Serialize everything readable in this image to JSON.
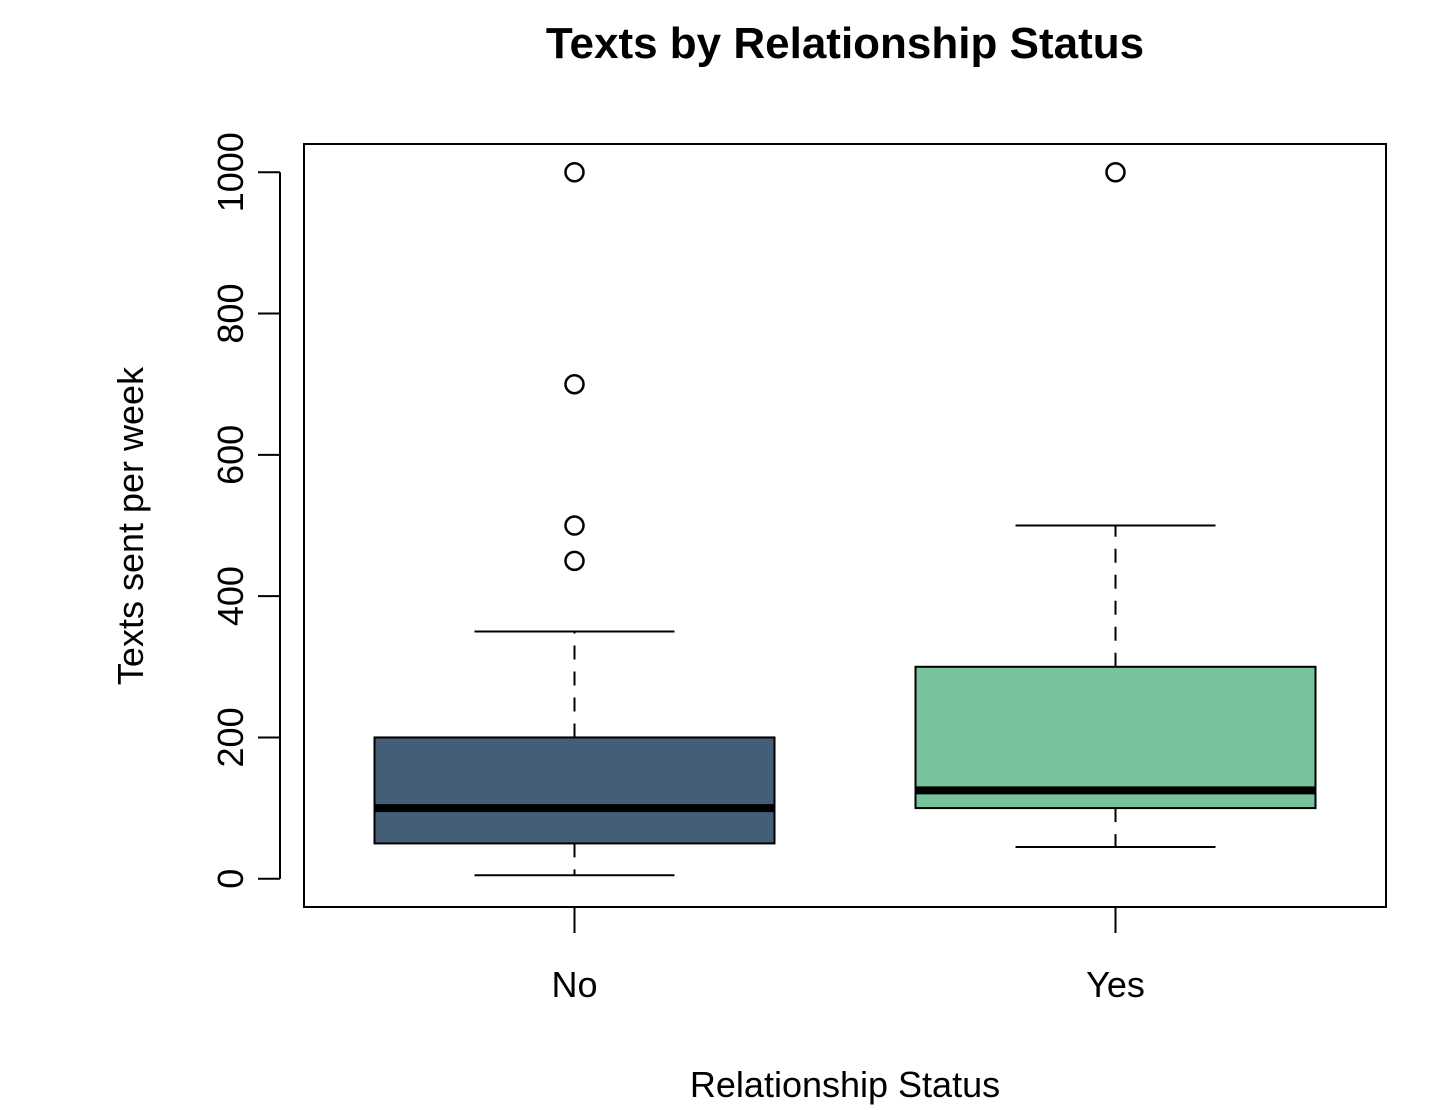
{
  "chart_data": {
    "type": "boxplot",
    "title": "Texts by Relationship Status",
    "xlabel": "Relationship Status",
    "ylabel": "Texts sent per week",
    "ylim": [
      -40,
      1040
    ],
    "yticks": [
      0,
      200,
      400,
      600,
      800,
      1000
    ],
    "yticks_labels": [
      "0",
      "200",
      "400",
      "600",
      "800",
      "1000"
    ],
    "categories": [
      "No",
      "Yes"
    ],
    "grid": false,
    "legend": "none",
    "boxes": [
      {
        "category": "No",
        "color": "#445e78",
        "whisker_low": 5,
        "q1": 50,
        "median": 100,
        "q3": 200,
        "whisker_high": 350,
        "outliers": [
          450,
          500,
          700,
          1000
        ]
      },
      {
        "category": "Yes",
        "color": "#77c39c",
        "whisker_low": 45,
        "q1": 100,
        "median": 125,
        "q3": 300,
        "whisker_high": 500,
        "outliers": [
          1000
        ]
      }
    ]
  }
}
